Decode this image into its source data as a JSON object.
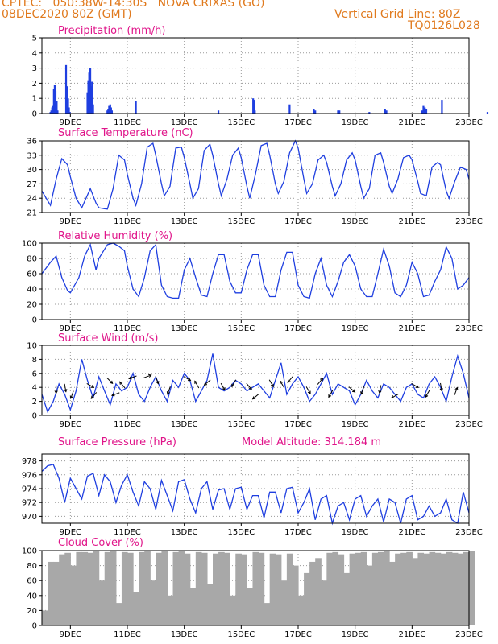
{
  "header": {
    "left1": "CPTEC:   050:38W-14:30S   NOVA CRIXAS (GO)",
    "left2": "08DEC2020 80Z (GMT)",
    "right1": "Vertical Grid Line: 80Z",
    "right2": "TQ0126L028"
  },
  "colors": {
    "header": "#e07a1e",
    "title": "#e0158a",
    "series": "#1f3fe0",
    "cloud": "#a8a8a8",
    "wind_arrow": "#000000"
  },
  "x_ticks": [
    "9DEC",
    "11DEC",
    "13DEC",
    "15DEC",
    "17DEC",
    "19DEC",
    "21DEC",
    "23DEC"
  ],
  "model_altitude": "Model Altitude: 314.184 m",
  "chart_data": [
    {
      "type": "bar",
      "title": "Precipitation (mm/h)",
      "ylim": [
        0,
        5
      ],
      "yticks": [
        "0",
        "1",
        "2",
        "3",
        "4",
        "5"
      ],
      "x": [
        0.3,
        0.33,
        0.36,
        0.4,
        0.42,
        0.45,
        0.48,
        0.52,
        0.55,
        0.85,
        0.88,
        0.92,
        0.95,
        0.98,
        1.6,
        1.63,
        1.66,
        1.7,
        1.72,
        1.75,
        1.78,
        1.8,
        2.3,
        2.33,
        2.36,
        2.4,
        2.43,
        2.46,
        3.3,
        6.2,
        7.42,
        7.45,
        7.48,
        8.7,
        9.55,
        9.6,
        10.4,
        10.45,
        11.5,
        12.05,
        12.1,
        13.35,
        13.4,
        13.45,
        13.5,
        14.05,
        15.65
      ],
      "values": [
        0.1,
        0.2,
        0.4,
        0.5,
        1.6,
        1.9,
        1.5,
        0.8,
        0.2,
        3.2,
        1.8,
        1.0,
        0.4,
        0.1,
        1.4,
        2.2,
        2.7,
        3.0,
        2.1,
        1.8,
        2.1,
        0.6,
        0.2,
        0.3,
        0.5,
        0.6,
        0.4,
        0.2,
        0.8,
        0.2,
        1.0,
        0.9,
        0.2,
        0.6,
        0.3,
        0.2,
        0.2,
        0.2,
        0.1,
        0.3,
        0.2,
        0.2,
        0.5,
        0.4,
        0.3,
        0.9,
        0.1
      ]
    },
    {
      "type": "line",
      "title": "Surface Temperature (nC)",
      "ylim": [
        21,
        36
      ],
      "yticks": [
        "21",
        "24",
        "27",
        "30",
        "33",
        "36"
      ],
      "x": [
        0.0,
        0.3,
        0.5,
        0.7,
        0.9,
        1.0,
        1.2,
        1.4,
        1.7,
        1.9,
        2.0,
        2.2,
        2.3,
        2.5,
        2.7,
        2.9,
        3.0,
        3.2,
        3.3,
        3.5,
        3.7,
        3.9,
        4.0,
        4.2,
        4.3,
        4.5,
        4.7,
        4.9,
        5.0,
        5.2,
        5.3,
        5.5,
        5.7,
        5.9,
        6.0,
        6.2,
        6.3,
        6.5,
        6.7,
        6.9,
        7.0,
        7.2,
        7.3,
        7.5,
        7.7,
        7.9,
        8.0,
        8.2,
        8.3,
        8.5,
        8.7,
        8.9,
        9.0,
        9.2,
        9.3,
        9.5,
        9.7,
        9.9,
        10.0,
        10.2,
        10.3,
        10.5,
        10.7,
        10.9,
        11.0,
        11.2,
        11.3,
        11.5,
        11.7,
        11.9,
        12.0,
        12.2,
        12.3,
        12.5,
        12.7,
        12.9,
        13.0,
        13.2,
        13.3,
        13.5,
        13.7,
        13.9,
        14.0,
        14.2,
        14.3,
        14.5,
        14.7,
        14.9,
        15.0
      ],
      "values": [
        25.5,
        22.5,
        28.0,
        32.3,
        31.0,
        28.5,
        24.0,
        22.0,
        26.0,
        23.0,
        22.0,
        21.8,
        21.7,
        26.0,
        33.0,
        32.0,
        29.0,
        24.0,
        22.5,
        27.0,
        34.7,
        35.5,
        33.0,
        27.0,
        24.5,
        26.5,
        34.5,
        34.7,
        32.5,
        27.0,
        24.0,
        26.0,
        34.0,
        35.3,
        33.0,
        27.0,
        24.5,
        28.0,
        33.0,
        34.5,
        32.5,
        26.5,
        24.0,
        29.0,
        35.0,
        35.5,
        33.0,
        27.0,
        25.0,
        27.5,
        33.5,
        36.0,
        34.5,
        28.0,
        25.0,
        27.0,
        32.0,
        33.0,
        31.5,
        26.5,
        24.5,
        27.0,
        32.0,
        33.5,
        32.0,
        26.5,
        24.0,
        26.0,
        33.0,
        33.5,
        31.5,
        26.5,
        25.0,
        28.0,
        32.5,
        33.0,
        32.0,
        27.5,
        25.0,
        24.5,
        30.5,
        31.5,
        31.0,
        25.5,
        24.0,
        27.5,
        30.5,
        30.0,
        28.0
      ]
    },
    {
      "type": "line",
      "title": "Relative Humidity (%)",
      "ylim": [
        0,
        100
      ],
      "yticks": [
        "0",
        "20",
        "40",
        "60",
        "80",
        "100"
      ],
      "x": [
        0.0,
        0.3,
        0.5,
        0.7,
        0.9,
        1.0,
        1.3,
        1.5,
        1.7,
        1.9,
        2.0,
        2.3,
        2.5,
        2.7,
        2.9,
        3.0,
        3.2,
        3.4,
        3.6,
        3.8,
        4.0,
        4.2,
        4.4,
        4.6,
        4.8,
        5.0,
        5.2,
        5.4,
        5.6,
        5.8,
        6.0,
        6.2,
        6.4,
        6.6,
        6.8,
        7.0,
        7.2,
        7.4,
        7.6,
        7.8,
        8.0,
        8.2,
        8.4,
        8.6,
        8.8,
        9.0,
        9.2,
        9.4,
        9.6,
        9.8,
        10.0,
        10.2,
        10.4,
        10.6,
        10.8,
        11.0,
        11.2,
        11.4,
        11.6,
        11.8,
        12.0,
        12.2,
        12.4,
        12.6,
        12.8,
        13.0,
        13.2,
        13.4,
        13.6,
        13.8,
        14.0,
        14.2,
        14.4,
        14.6,
        14.8,
        15.0
      ],
      "values": [
        60,
        75,
        83,
        55,
        38,
        35,
        55,
        83,
        98,
        65,
        80,
        98,
        100,
        96,
        90,
        70,
        40,
        30,
        55,
        90,
        98,
        45,
        30,
        28,
        28,
        65,
        80,
        55,
        32,
        30,
        60,
        85,
        85,
        50,
        35,
        35,
        65,
        85,
        85,
        45,
        30,
        30,
        65,
        88,
        88,
        45,
        30,
        28,
        60,
        80,
        45,
        30,
        50,
        75,
        85,
        70,
        40,
        30,
        30,
        60,
        92,
        70,
        35,
        30,
        45,
        75,
        60,
        30,
        32,
        50,
        65,
        95,
        80,
        40,
        45,
        55
      ]
    },
    {
      "type": "line",
      "title": "Surface Wind (m/s)",
      "ylim": [
        0,
        10
      ],
      "yticks": [
        "0",
        "2",
        "4",
        "6",
        "8",
        "10"
      ],
      "x": [
        0.0,
        0.2,
        0.4,
        0.6,
        0.8,
        1.0,
        1.2,
        1.4,
        1.6,
        1.8,
        2.0,
        2.2,
        2.4,
        2.6,
        2.8,
        3.0,
        3.2,
        3.4,
        3.6,
        3.8,
        4.0,
        4.2,
        4.4,
        4.6,
        4.8,
        5.0,
        5.2,
        5.4,
        5.6,
        5.8,
        6.0,
        6.2,
        6.4,
        6.6,
        6.8,
        7.0,
        7.2,
        7.4,
        7.6,
        7.8,
        8.0,
        8.2,
        8.4,
        8.6,
        8.8,
        9.0,
        9.2,
        9.4,
        9.6,
        9.8,
        10.0,
        10.2,
        10.4,
        10.6,
        10.8,
        11.0,
        11.2,
        11.4,
        11.6,
        11.8,
        12.0,
        12.2,
        12.4,
        12.6,
        12.8,
        13.0,
        13.2,
        13.4,
        13.6,
        13.8,
        14.0,
        14.2,
        14.4,
        14.6,
        14.8,
        15.0
      ],
      "values": [
        3.0,
        0.5,
        2.0,
        4.5,
        3.0,
        0.8,
        3.5,
        8.0,
        5.0,
        2.5,
        5.5,
        3.5,
        1.5,
        4.5,
        3.5,
        4.0,
        6.0,
        3.0,
        2.0,
        4.0,
        5.5,
        3.5,
        2.0,
        5.0,
        4.0,
        6.0,
        5.0,
        2.0,
        3.5,
        5.0,
        8.8,
        4.0,
        3.5,
        4.0,
        5.0,
        4.5,
        3.5,
        4.0,
        4.5,
        3.5,
        2.5,
        5.0,
        7.5,
        3.0,
        4.5,
        5.5,
        4.0,
        2.0,
        3.0,
        4.5,
        6.0,
        3.0,
        4.5,
        4.0,
        3.5,
        1.5,
        3.0,
        5.0,
        3.5,
        2.5,
        4.5,
        4.0,
        3.0,
        2.0,
        4.0,
        4.5,
        3.0,
        2.5,
        4.5,
        5.5,
        4.0,
        2.0,
        5.5,
        8.5,
        6.0,
        2.5
      ],
      "arrows": [
        {
          "x": 0.5,
          "speed": 4.2,
          "dir": 180
        },
        {
          "x": 0.8,
          "speed": 4.4,
          "dir": 170
        },
        {
          "x": 1.1,
          "speed": 3.4,
          "dir": 200
        },
        {
          "x": 1.6,
          "speed": 4.5,
          "dir": 120
        },
        {
          "x": 1.9,
          "speed": 3.2,
          "dir": 220
        },
        {
          "x": 2.3,
          "speed": 5.3,
          "dir": 135
        },
        {
          "x": 2.7,
          "speed": 3.2,
          "dir": 250
        },
        {
          "x": 2.9,
          "speed": 4.0,
          "dir": 320
        },
        {
          "x": 3.3,
          "speed": 5.6,
          "dir": 250
        },
        {
          "x": 3.6,
          "speed": 5.4,
          "dir": 70
        },
        {
          "x": 4.0,
          "speed": 5.5,
          "dir": 160
        },
        {
          "x": 4.5,
          "speed": 4.0,
          "dir": 200
        },
        {
          "x": 5.0,
          "speed": 5.5,
          "dir": 120
        },
        {
          "x": 5.5,
          "speed": 4.0,
          "dir": 330
        },
        {
          "x": 5.9,
          "speed": 5.0,
          "dir": 230
        },
        {
          "x": 6.3,
          "speed": 4.5,
          "dir": 150
        },
        {
          "x": 6.8,
          "speed": 5.0,
          "dir": 210
        },
        {
          "x": 7.2,
          "speed": 4.5,
          "dir": 140
        },
        {
          "x": 7.6,
          "speed": 3.0,
          "dir": 230
        },
        {
          "x": 8.0,
          "speed": 5.0,
          "dir": 150
        },
        {
          "x": 8.5,
          "speed": 4.0,
          "dir": 330
        },
        {
          "x": 8.8,
          "speed": 5.5,
          "dir": 220
        },
        {
          "x": 9.3,
          "speed": 4.0,
          "dir": 150
        },
        {
          "x": 9.7,
          "speed": 4.5,
          "dir": 40
        },
        {
          "x": 10.2,
          "speed": 3.5,
          "dir": 210
        },
        {
          "x": 10.8,
          "speed": 4.0,
          "dir": 130
        },
        {
          "x": 11.3,
          "speed": 4.0,
          "dir": 200
        },
        {
          "x": 11.9,
          "speed": 4.2,
          "dir": 190
        },
        {
          "x": 12.5,
          "speed": 3.0,
          "dir": 240
        },
        {
          "x": 13.0,
          "speed": 4.5,
          "dir": 120
        },
        {
          "x": 13.6,
          "speed": 3.5,
          "dir": 210
        },
        {
          "x": 14.0,
          "speed": 4.5,
          "dir": 170
        },
        {
          "x": 14.5,
          "speed": 3.0,
          "dir": 20
        }
      ]
    },
    {
      "type": "line",
      "title": "Surface Pressure (hPa)",
      "ylim": [
        969,
        979
      ],
      "yticks": [
        "970",
        "972",
        "974",
        "976",
        "978"
      ],
      "x": [
        0.0,
        0.2,
        0.4,
        0.6,
        0.8,
        1.0,
        1.2,
        1.4,
        1.6,
        1.8,
        2.0,
        2.2,
        2.4,
        2.6,
        2.8,
        3.0,
        3.2,
        3.4,
        3.6,
        3.8,
        4.0,
        4.2,
        4.4,
        4.6,
        4.8,
        5.0,
        5.2,
        5.4,
        5.6,
        5.8,
        6.0,
        6.2,
        6.4,
        6.6,
        6.8,
        7.0,
        7.2,
        7.4,
        7.6,
        7.8,
        8.0,
        8.2,
        8.4,
        8.6,
        8.8,
        9.0,
        9.2,
        9.4,
        9.6,
        9.8,
        10.0,
        10.2,
        10.4,
        10.6,
        10.8,
        11.0,
        11.2,
        11.4,
        11.6,
        11.8,
        12.0,
        12.2,
        12.4,
        12.6,
        12.8,
        13.0,
        13.2,
        13.4,
        13.6,
        13.8,
        14.0,
        14.2,
        14.4,
        14.6,
        14.8,
        15.0
      ],
      "values": [
        976.5,
        977.3,
        977.5,
        975.5,
        972.0,
        975.5,
        974.0,
        972.5,
        975.8,
        976.2,
        973.0,
        976.0,
        975.0,
        972.0,
        974.5,
        976.0,
        973.5,
        971.5,
        975.0,
        974.0,
        971.0,
        975.2,
        973.0,
        970.8,
        975.0,
        975.3,
        972.5,
        970.5,
        974.0,
        975.0,
        971.0,
        973.8,
        974.0,
        971.0,
        974.0,
        974.2,
        971.0,
        973.0,
        973.0,
        969.8,
        973.5,
        973.5,
        970.5,
        974.0,
        974.2,
        970.5,
        972.0,
        974.0,
        969.5,
        972.5,
        973.0,
        969.0,
        971.5,
        972.0,
        969.5,
        972.5,
        973.0,
        970.0,
        971.5,
        972.5,
        969.2,
        972.5,
        972.0,
        969.0,
        972.5,
        973.0,
        969.5,
        970.0,
        971.5,
        970.0,
        970.5,
        972.5,
        969.5,
        969.0,
        973.5,
        970.5
      ]
    },
    {
      "type": "bar",
      "title": "Cloud Cover (%)",
      "ylim": [
        0,
        100
      ],
      "yticks": [
        "0",
        "20",
        "40",
        "60",
        "80",
        "100"
      ],
      "x": [
        0.0,
        0.2,
        0.4,
        0.6,
        0.8,
        1.0,
        1.2,
        1.4,
        1.6,
        1.8,
        2.0,
        2.2,
        2.4,
        2.6,
        2.8,
        3.0,
        3.2,
        3.4,
        3.6,
        3.8,
        4.0,
        4.2,
        4.4,
        4.6,
        4.8,
        5.0,
        5.2,
        5.4,
        5.6,
        5.8,
        6.0,
        6.2,
        6.4,
        6.6,
        6.8,
        7.0,
        7.2,
        7.4,
        7.6,
        7.8,
        8.0,
        8.2,
        8.4,
        8.6,
        8.8,
        9.0,
        9.2,
        9.4,
        9.6,
        9.8,
        10.0,
        10.2,
        10.4,
        10.6,
        10.8,
        11.0,
        11.2,
        11.4,
        11.6,
        11.8,
        12.0,
        12.2,
        12.4,
        12.6,
        12.8,
        13.0,
        13.2,
        13.4,
        13.6,
        13.8,
        14.0,
        14.2,
        14.4,
        14.6,
        14.8,
        15.0
      ],
      "values": [
        20,
        85,
        85,
        95,
        97,
        80,
        98,
        98,
        97,
        99,
        60,
        98,
        99,
        30,
        98,
        97,
        45,
        98,
        99,
        60,
        97,
        99,
        40,
        98,
        99,
        96,
        50,
        98,
        97,
        55,
        96,
        98,
        97,
        40,
        96,
        95,
        50,
        98,
        97,
        30,
        96,
        95,
        60,
        96,
        80,
        40,
        70,
        85,
        90,
        60,
        97,
        98,
        95,
        70,
        96,
        97,
        98,
        80,
        97,
        98,
        99,
        85,
        96,
        97,
        98,
        90,
        97,
        96,
        98,
        97,
        96,
        98,
        97,
        96,
        98,
        99
      ]
    }
  ]
}
